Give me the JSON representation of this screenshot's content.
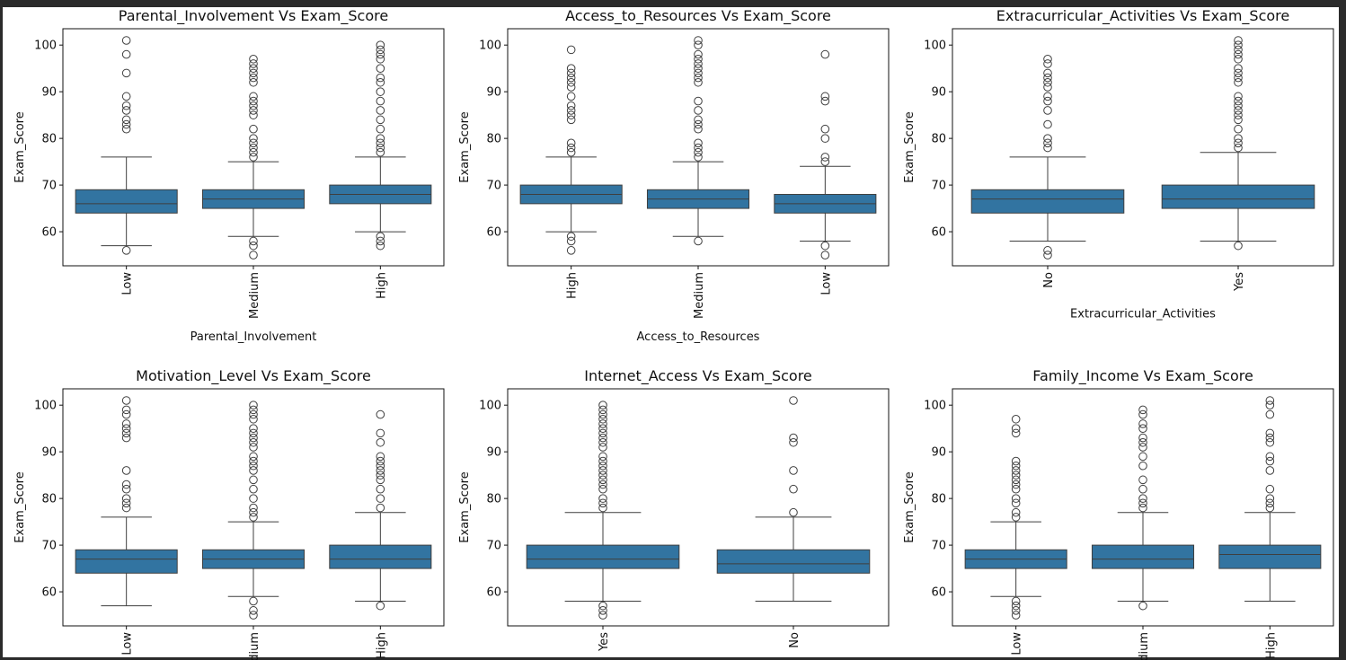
{
  "chart_data": [
    {
      "type": "box",
      "title": "Parental_Involvement Vs Exam_Score",
      "xlabel": "Parental_Involvement",
      "ylabel": "Exam_Score",
      "categories": [
        "Low",
        "Medium",
        "High"
      ],
      "color": "#3274a1",
      "ylim": [
        52.7,
        103.5
      ],
      "yticks": [
        60,
        70,
        80,
        90,
        100
      ],
      "boxes": [
        {
          "whislo": 57,
          "q1": 64,
          "med": 66,
          "q3": 69,
          "whishi": 76,
          "fliers": [
            56,
            82,
            83,
            84,
            86,
            87,
            89,
            94,
            98,
            101
          ]
        },
        {
          "whislo": 59,
          "q1": 65,
          "med": 67,
          "q3": 69,
          "whishi": 75,
          "fliers": [
            55,
            57,
            58,
            76,
            77,
            78,
            79,
            80,
            82,
            85,
            86,
            87,
            88,
            89,
            92,
            93,
            94,
            95,
            96,
            97
          ]
        },
        {
          "whislo": 60,
          "q1": 66,
          "med": 68,
          "q3": 70,
          "whishi": 76,
          "fliers": [
            57,
            58,
            59,
            77,
            78,
            79,
            80,
            82,
            84,
            86,
            88,
            90,
            92,
            93,
            95,
            97,
            98,
            99,
            100
          ]
        }
      ]
    },
    {
      "type": "box",
      "title": "Access_to_Resources Vs Exam_Score",
      "xlabel": "Access_to_Resources",
      "ylabel": "Exam_Score",
      "categories": [
        "High",
        "Medium",
        "Low"
      ],
      "color": "#3274a1",
      "ylim": [
        52.7,
        103.5
      ],
      "yticks": [
        60,
        70,
        80,
        90,
        100
      ],
      "boxes": [
        {
          "whislo": 60,
          "q1": 66,
          "med": 68,
          "q3": 70,
          "whishi": 76,
          "fliers": [
            56,
            58,
            59,
            77,
            78,
            79,
            84,
            85,
            86,
            87,
            89,
            91,
            92,
            93,
            94,
            95,
            99
          ]
        },
        {
          "whislo": 59,
          "q1": 65,
          "med": 67,
          "q3": 69,
          "whishi": 75,
          "fliers": [
            58,
            76,
            77,
            78,
            79,
            82,
            83,
            84,
            86,
            88,
            92,
            93,
            94,
            95,
            96,
            97,
            98,
            100,
            101
          ]
        },
        {
          "whislo": 58,
          "q1": 64,
          "med": 66,
          "q3": 68,
          "whishi": 74,
          "fliers": [
            55,
            57,
            75,
            76,
            80,
            82,
            88,
            89,
            98
          ]
        }
      ]
    },
    {
      "type": "box",
      "title": "Extracurricular_Activities Vs Exam_Score",
      "xlabel": "Extracurricular_Activities",
      "ylabel": "Exam_Score",
      "categories": [
        "No",
        "Yes"
      ],
      "color": "#3274a1",
      "ylim": [
        52.7,
        103.5
      ],
      "yticks": [
        60,
        70,
        80,
        90,
        100
      ],
      "boxes": [
        {
          "whislo": 58,
          "q1": 64,
          "med": 67,
          "q3": 69,
          "whishi": 76,
          "fliers": [
            55,
            56,
            78,
            79,
            80,
            83,
            86,
            88,
            89,
            91,
            92,
            93,
            94,
            96,
            97
          ]
        },
        {
          "whislo": 58,
          "q1": 65,
          "med": 67,
          "q3": 70,
          "whishi": 77,
          "fliers": [
            57,
            78,
            79,
            80,
            82,
            84,
            85,
            86,
            87,
            88,
            89,
            92,
            93,
            94,
            95,
            97,
            98,
            99,
            100,
            101
          ]
        }
      ]
    },
    {
      "type": "box",
      "title": "Motivation_Level Vs Exam_Score",
      "ylabel": "Exam_Score",
      "categories": [
        "Low",
        "Medium",
        "High"
      ],
      "color": "#3274a1",
      "ylim": [
        52.7,
        103.5
      ],
      "yticks": [
        60,
        70,
        80,
        90,
        100
      ],
      "boxes": [
        {
          "whislo": 57,
          "q1": 64,
          "med": 67,
          "q3": 69,
          "whishi": 76,
          "fliers": [
            78,
            79,
            80,
            82,
            83,
            86,
            93,
            94,
            95,
            96,
            98,
            99,
            101
          ]
        },
        {
          "whislo": 59,
          "q1": 65,
          "med": 67,
          "q3": 69,
          "whishi": 75,
          "fliers": [
            55,
            56,
            58,
            76,
            77,
            78,
            80,
            82,
            84,
            86,
            87,
            88,
            89,
            91,
            92,
            93,
            94,
            95,
            97,
            98,
            99,
            100
          ]
        },
        {
          "whislo": 58,
          "q1": 65,
          "med": 67,
          "q3": 70,
          "whishi": 77,
          "fliers": [
            57,
            78,
            80,
            82,
            84,
            85,
            86,
            87,
            88,
            89,
            92,
            94,
            98
          ]
        }
      ]
    },
    {
      "type": "box",
      "title": "Internet_Access Vs Exam_Score",
      "ylabel": "Exam_Score",
      "categories": [
        "Yes",
        "No"
      ],
      "color": "#3274a1",
      "ylim": [
        52.7,
        103.5
      ],
      "yticks": [
        60,
        70,
        80,
        90,
        100
      ],
      "boxes": [
        {
          "whislo": 58,
          "q1": 65,
          "med": 67,
          "q3": 70,
          "whishi": 77,
          "fliers": [
            55,
            56,
            57,
            78,
            79,
            80,
            82,
            83,
            84,
            85,
            86,
            87,
            88,
            89,
            91,
            92,
            93,
            94,
            95,
            96,
            97,
            98,
            99,
            100
          ]
        },
        {
          "whislo": 58,
          "q1": 64,
          "med": 66,
          "q3": 69,
          "whishi": 76,
          "fliers": [
            77,
            82,
            86,
            92,
            93,
            101
          ]
        }
      ]
    },
    {
      "type": "box",
      "title": "Family_Income Vs Exam_Score",
      "ylabel": "Exam_Score",
      "categories": [
        "Low",
        "Medium",
        "High"
      ],
      "color": "#3274a1",
      "ylim": [
        52.7,
        103.5
      ],
      "yticks": [
        60,
        70,
        80,
        90,
        100
      ],
      "boxes": [
        {
          "whislo": 59,
          "q1": 65,
          "med": 67,
          "q3": 69,
          "whishi": 75,
          "fliers": [
            55,
            56,
            57,
            58,
            76,
            77,
            79,
            80,
            82,
            83,
            84,
            85,
            86,
            87,
            88,
            94,
            95,
            97
          ]
        },
        {
          "whislo": 58,
          "q1": 65,
          "med": 67,
          "q3": 70,
          "whishi": 77,
          "fliers": [
            57,
            78,
            79,
            80,
            82,
            84,
            87,
            89,
            91,
            92,
            93,
            95,
            96,
            98,
            99
          ]
        },
        {
          "whislo": 58,
          "q1": 65,
          "med": 68,
          "q3": 70,
          "whishi": 77,
          "fliers": [
            78,
            79,
            80,
            82,
            86,
            88,
            89,
            92,
            93,
            94,
            98,
            100,
            101
          ]
        }
      ]
    }
  ]
}
